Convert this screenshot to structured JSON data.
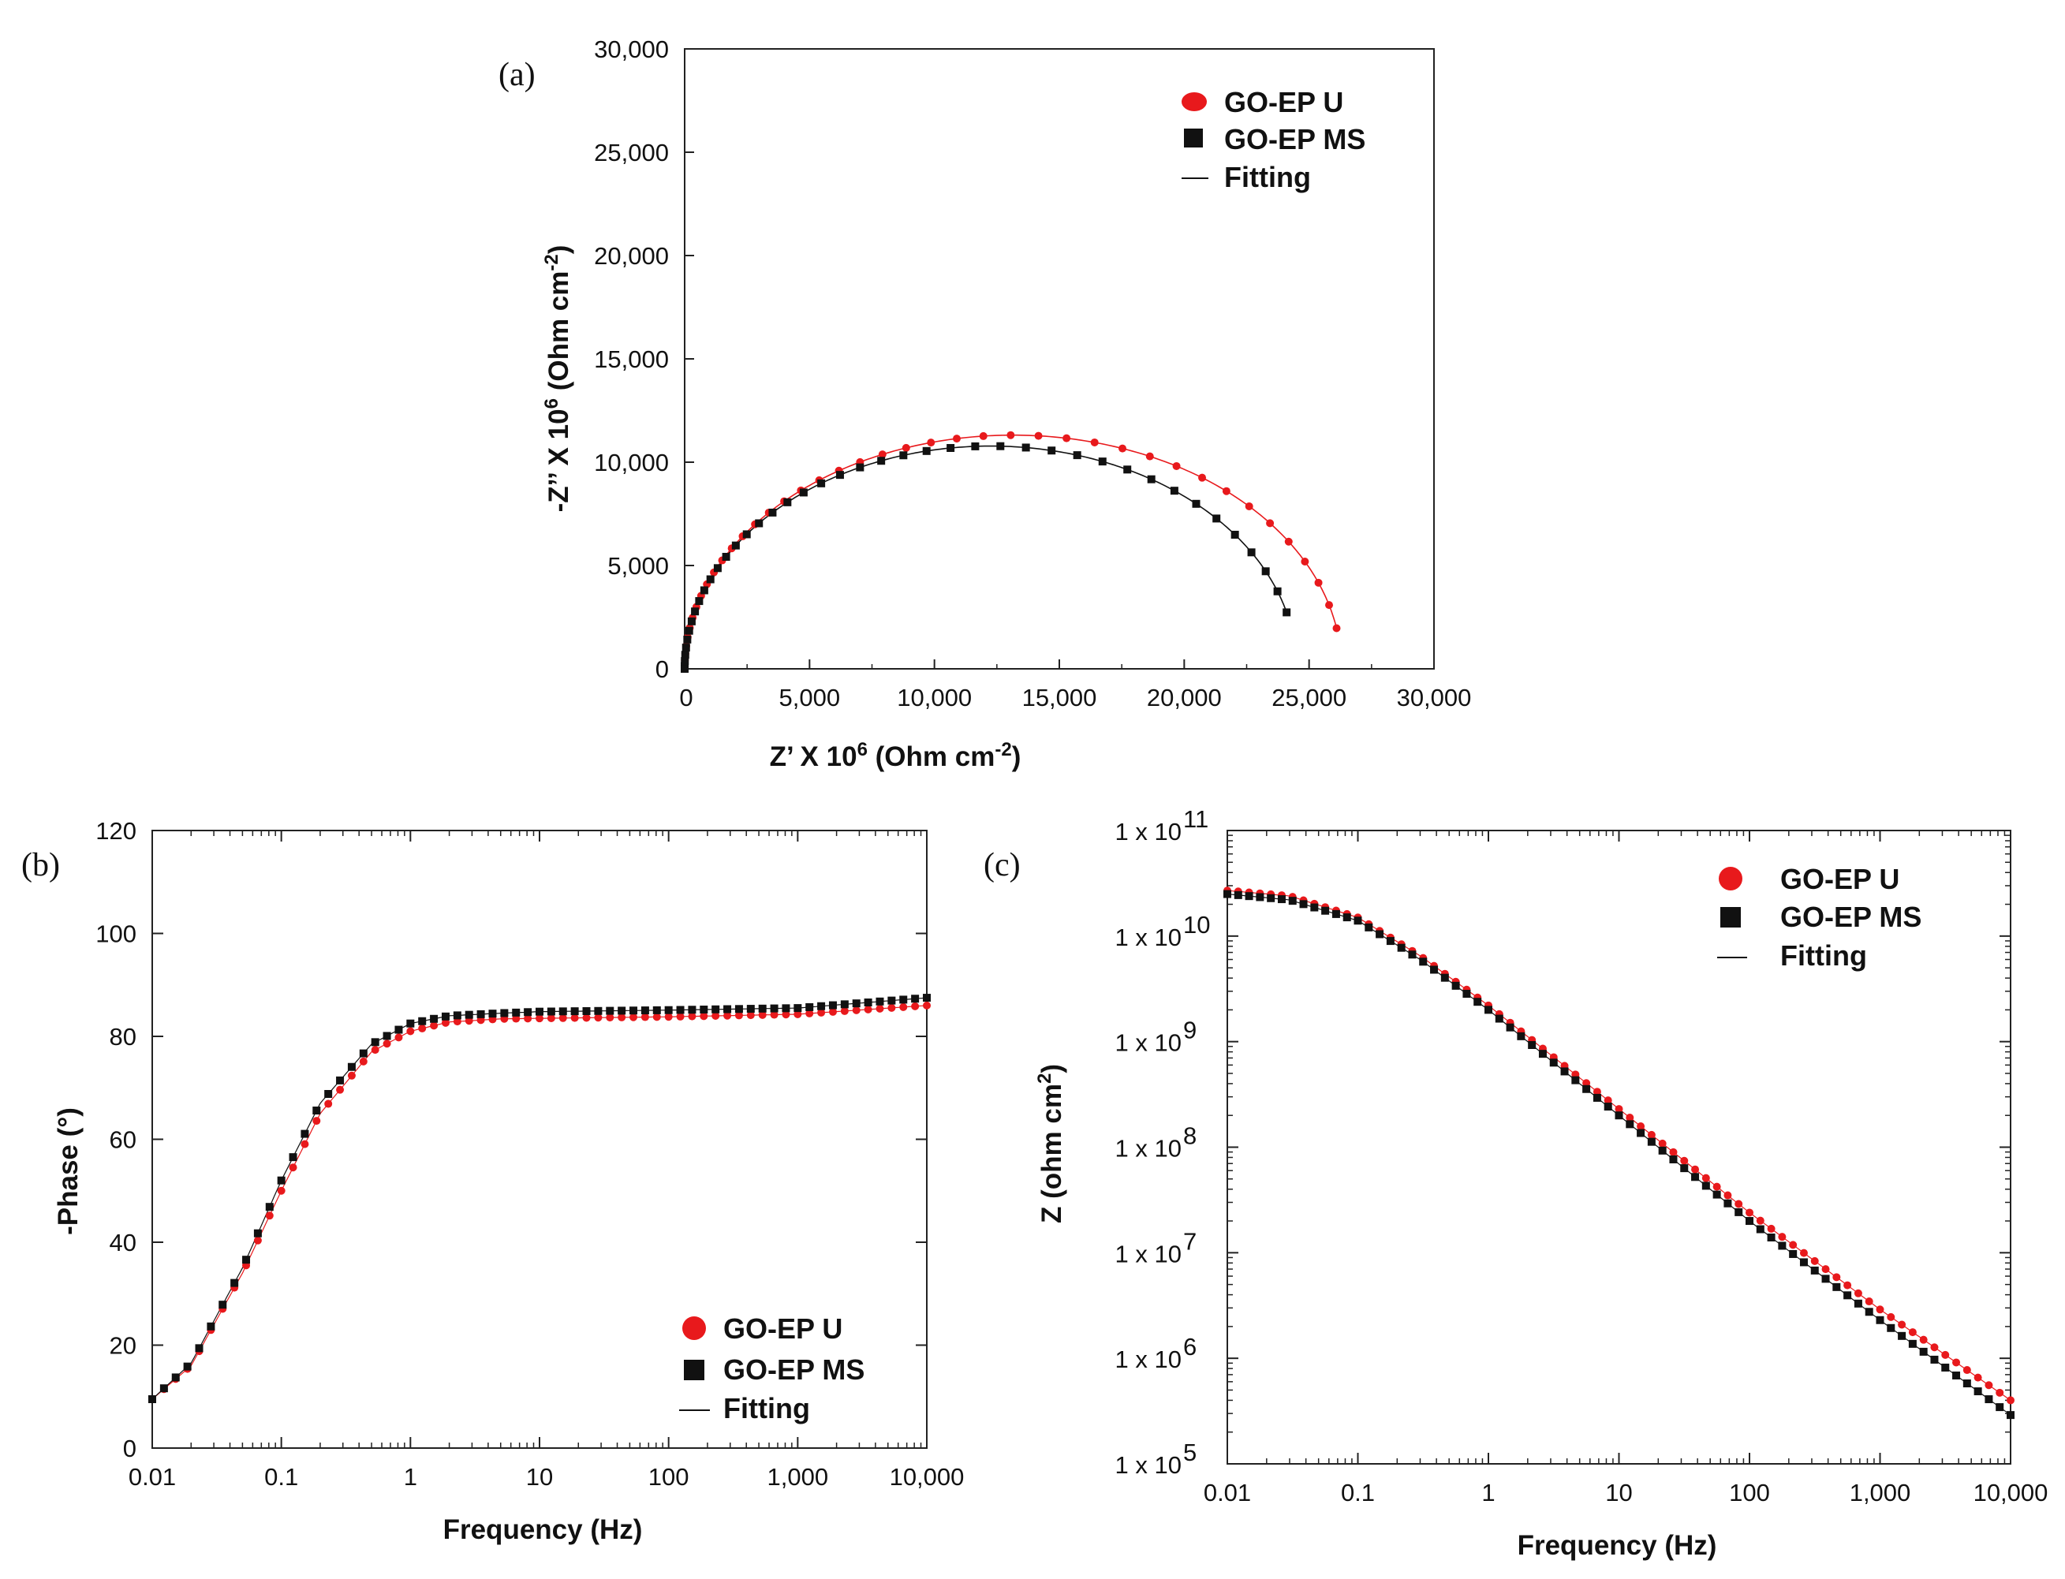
{
  "chart_data": [
    {
      "type": "scatter",
      "panel_label": "(a)",
      "xlabel": "Z’ X 10",
      "xlabel_sup": "6",
      "xlabel_unit": " (Ohm cm",
      "xlabel_unit_sup": "-2",
      "xlabel_end": ")",
      "ylabel": "-Z’’ X 10",
      "ylabel_sup": "6",
      "ylabel_unit": " (Ohm cm",
      "ylabel_unit_sup": "-2",
      "ylabel_end": ")",
      "xlim": [
        0,
        30000
      ],
      "ylim": [
        0,
        30000
      ],
      "x_ticks": [
        0,
        5000,
        10000,
        15000,
        20000,
        25000,
        30000
      ],
      "x_tick_labels": [
        "0",
        "5,000",
        "10,000",
        "15,000",
        "20,000",
        "25,000",
        "30,000"
      ],
      "y_ticks": [
        0,
        5000,
        10000,
        15000,
        20000,
        25000,
        30000
      ],
      "y_tick_labels": [
        "0",
        "5,000",
        "10,000",
        "15,000",
        "20,000",
        "25,000",
        "30,000"
      ],
      "legend_position": "top-right",
      "legend": [
        "GO-EP U",
        "GO-EP MS",
        "Fitting"
      ],
      "series": [
        {
          "name": "GO-EP U",
          "marker": "circle",
          "color": "#e8191c",
          "Rct": 26300,
          "depression": 0.86,
          "z_end": 26100
        },
        {
          "name": "GO-EP MS",
          "marker": "square",
          "color": "#111111",
          "Rct": 24500,
          "depression": 0.88,
          "z_end": 24100
        }
      ]
    },
    {
      "type": "scatter",
      "panel_label": "(b)",
      "xscale": "log",
      "xlabel": "Frequency (Hz)",
      "ylabel": "-Phase (°)",
      "xlim": [
        0.01,
        10000
      ],
      "ylim": [
        0,
        120
      ],
      "x_ticks": [
        0.01,
        0.1,
        1,
        10,
        100,
        1000,
        10000
      ],
      "x_tick_labels": [
        "0.01",
        "0.1",
        "1",
        "10",
        "100",
        "1,000",
        "10,000"
      ],
      "y_ticks": [
        0,
        20,
        40,
        60,
        80,
        100,
        120
      ],
      "y_tick_labels": [
        "0",
        "20",
        "40",
        "60",
        "80",
        "100",
        "120"
      ],
      "legend_position": "bottom-right",
      "legend": [
        "GO-EP U",
        "GO-EP MS",
        "Fitting"
      ],
      "series": [
        {
          "name": "GO-EP U",
          "marker": "circle",
          "color": "#e8191c",
          "f": [
            0.01,
            0.02,
            0.05,
            0.1,
            0.2,
            0.5,
            1,
            2,
            5,
            10,
            100,
            1000,
            10000
          ],
          "phase": [
            9.5,
            16,
            34,
            50,
            65,
            77,
            81,
            82.8,
            83.4,
            83.5,
            83.8,
            84.3,
            86
          ]
        },
        {
          "name": "GO-EP MS",
          "marker": "square",
          "color": "#111111",
          "f": [
            0.01,
            0.02,
            0.05,
            0.1,
            0.2,
            0.5,
            1,
            2,
            5,
            10,
            100,
            1000,
            10000
          ],
          "phase": [
            9.5,
            16.5,
            35,
            52,
            67,
            78.5,
            82.5,
            84,
            84.5,
            84.8,
            85.1,
            85.5,
            87.5
          ]
        }
      ]
    },
    {
      "type": "scatter",
      "panel_label": "(c)",
      "xscale": "log",
      "yscale": "log",
      "xlabel": "Frequency (Hz)",
      "ylabel": "Z (ohm cm",
      "ylabel_sup": "2",
      "ylabel_end": ")",
      "xlim": [
        0.01,
        10000
      ],
      "ylim": [
        100000,
        100000000000
      ],
      "x_ticks": [
        0.01,
        0.1,
        1,
        10,
        100,
        1000,
        10000
      ],
      "x_tick_labels": [
        "0.01",
        "0.1",
        "1",
        "10",
        "100",
        "1,000",
        "10,000"
      ],
      "y_ticks": [
        100000,
        1000000,
        10000000,
        100000000,
        1000000000,
        10000000000,
        100000000000
      ],
      "y_tick_base": "1 x 10",
      "y_tick_exponents": [
        "5",
        "6",
        "7",
        "8",
        "9",
        "10",
        "11"
      ],
      "legend_position": "top-right",
      "legend": [
        "GO-EP U",
        "GO-EP MS",
        "Fitting"
      ],
      "series": [
        {
          "name": "GO-EP U",
          "marker": "circle",
          "color": "#e8191c",
          "f": [
            0.01,
            0.03,
            0.1,
            0.3,
            1,
            10,
            100,
            1000,
            10000
          ],
          "Z": [
            27000000000,
            24000000000,
            15000000000,
            6500000000,
            2200000000,
            230000000,
            24000000,
            2900000,
            400000
          ]
        },
        {
          "name": "GO-EP MS",
          "marker": "square",
          "color": "#111111",
          "f": [
            0.01,
            0.03,
            0.1,
            0.3,
            1,
            10,
            100,
            1000,
            10000
          ],
          "Z": [
            25000000000,
            22000000000,
            14000000000,
            6000000000,
            2000000000,
            200000000,
            20000000,
            2300000,
            290000
          ]
        }
      ]
    }
  ]
}
